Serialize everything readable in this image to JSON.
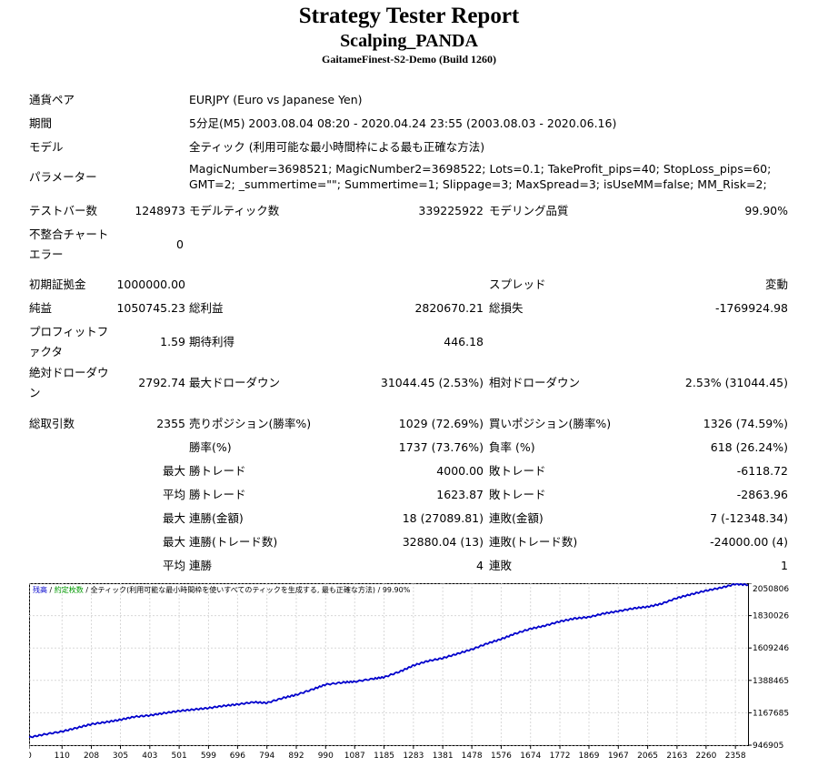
{
  "header": {
    "title": "Strategy Tester Report",
    "subtitle": "Scalping_PANDA",
    "build": "GaitameFinest-S2-Demo (Build 1260)"
  },
  "info": {
    "symbol_label": "通貨ペア",
    "symbol_value": "EURJPY (Euro vs Japanese Yen)",
    "period_label": "期間",
    "period_value": "5分足(M5) 2003.08.04 08:20 - 2020.04.24 23:55 (2003.08.03 - 2020.06.16)",
    "model_label": "モデル",
    "model_value": "全ティック (利用可能な最小時間枠による最も正確な方法)",
    "params_label": "パラメーター",
    "params_line1": "MagicNumber=3698521; MagicNumber2=3698522; Lots=0.1; TakeProfit_pips=40; StopLoss_pips=60;",
    "params_line2": "GMT=2; _summertime=\"\"; Summertime=1; Slippage=3; MaxSpread=3; isUseMM=false; MM_Risk=2;"
  },
  "stats": {
    "bars_label": "テストバー数",
    "bars_value": "1248973",
    "ticks_label": "モデルティック数",
    "ticks_value": "339225922",
    "quality_label": "モデリング品質",
    "quality_value": "99.90%",
    "mismatch_label": "不整合チャートエラー",
    "mismatch_value": "0",
    "deposit_label": "初期証拠金",
    "deposit_value": "1000000.00",
    "spread_label": "スプレッド",
    "spread_value": "変動",
    "net_label": "純益",
    "net_value": "1050745.23",
    "gross_profit_label": "総利益",
    "gross_profit_value": "2820670.21",
    "gross_loss_label": "総損失",
    "gross_loss_value": "-1769924.98",
    "pf_label": "プロフィットファクタ",
    "pf_value": "1.59",
    "expected_label": "期待利得",
    "expected_value": "446.18",
    "abs_dd_label": "絶対ドローダウン",
    "abs_dd_value": "2792.74",
    "max_dd_label": "最大ドローダウン",
    "max_dd_value": "31044.45 (2.53%)",
    "rel_dd_label": "相対ドローダウン",
    "rel_dd_value": "2.53% (31044.45)",
    "trades_label": "総取引数",
    "trades_value": "2355",
    "short_label": "売りポジション(勝率%)",
    "short_value": "1029 (72.69%)",
    "long_label": "買いポジション(勝率%)",
    "long_value": "1326 (74.59%)",
    "winpct_label": "勝率(%)",
    "winpct_value": "1737 (73.76%)",
    "losspct_label": "負率 (%)",
    "losspct_value": "618 (26.24%)",
    "max_label": "最大",
    "avg_label": "平均",
    "max_win_label": "勝トレード",
    "max_win_value": "4000.00",
    "max_loss_label": "敗トレード",
    "max_loss_value": "-6118.72",
    "avg_win_label": "勝トレード",
    "avg_win_value": "1623.87",
    "avg_loss_label": "敗トレード",
    "avg_loss_value": "-2863.96",
    "consec_wins_label": "連勝(金額)",
    "consec_wins_value": "18 (27089.81)",
    "consec_losses_label": "連敗(金額)",
    "consec_losses_value": "7 (-12348.34)",
    "consec_profit_label": "連勝(トレード数)",
    "consec_profit_value": "32880.04 (13)",
    "consec_loss_label": "連敗(トレード数)",
    "consec_loss_value": "-24000.00 (4)",
    "avg_wins_label": "連勝",
    "avg_wins_value": "4",
    "avg_losses_label": "連敗",
    "avg_losses_value": "1"
  },
  "chart_data": {
    "type": "line",
    "legend_balance": "残高",
    "legend_sep1": " / ",
    "legend_volume": "約定枚数",
    "legend_rest": " / 全ティック(利用可能な最小時間枠を使いすべてのティックを生成する, 最も正確な方法) / 99.90%",
    "legend_balance_color": "#0000cc",
    "legend_volume_color": "#009900",
    "line_color": "#0000cc",
    "x_ticks": [
      "0",
      "110",
      "208",
      "305",
      "403",
      "501",
      "599",
      "696",
      "794",
      "892",
      "990",
      "1087",
      "1185",
      "1283",
      "1381",
      "1478",
      "1576",
      "1674",
      "1772",
      "1869",
      "1967",
      "2065",
      "2163",
      "2260",
      "2358"
    ],
    "y_ticks": [
      "2050806",
      "1830026",
      "1609246",
      "1388465",
      "1167685",
      "946905"
    ],
    "xlim": [
      0,
      2400
    ],
    "ylim": [
      946905,
      2050806
    ],
    "series": [
      {
        "x": [
          0,
          50,
          110,
          160,
          208,
          260,
          305,
          350,
          403,
          450,
          501,
          550,
          599,
          650,
          696,
          750,
          794,
          850,
          892,
          950,
          990,
          1050,
          1087,
          1150,
          1185,
          1240,
          1283,
          1330,
          1381,
          1430,
          1478,
          1530,
          1576,
          1620,
          1674,
          1720,
          1772,
          1820,
          1869,
          1920,
          1967,
          2020,
          2065,
          2110,
          2163,
          2210,
          2260,
          2310,
          2358,
          2400
        ],
        "y": [
          1000000,
          1020000,
          1040000,
          1065000,
          1090000,
          1105000,
          1120000,
          1140000,
          1150000,
          1165000,
          1180000,
          1190000,
          1200000,
          1215000,
          1225000,
          1240000,
          1235000,
          1270000,
          1290000,
          1330000,
          1360000,
          1375000,
          1380000,
          1400000,
          1410000,
          1450000,
          1490000,
          1520000,
          1540000,
          1570000,
          1600000,
          1640000,
          1670000,
          1705000,
          1740000,
          1760000,
          1790000,
          1810000,
          1820000,
          1845000,
          1860000,
          1880000,
          1890000,
          1910000,
          1950000,
          1975000,
          2000000,
          2020000,
          2045000,
          2040000
        ]
      }
    ]
  }
}
